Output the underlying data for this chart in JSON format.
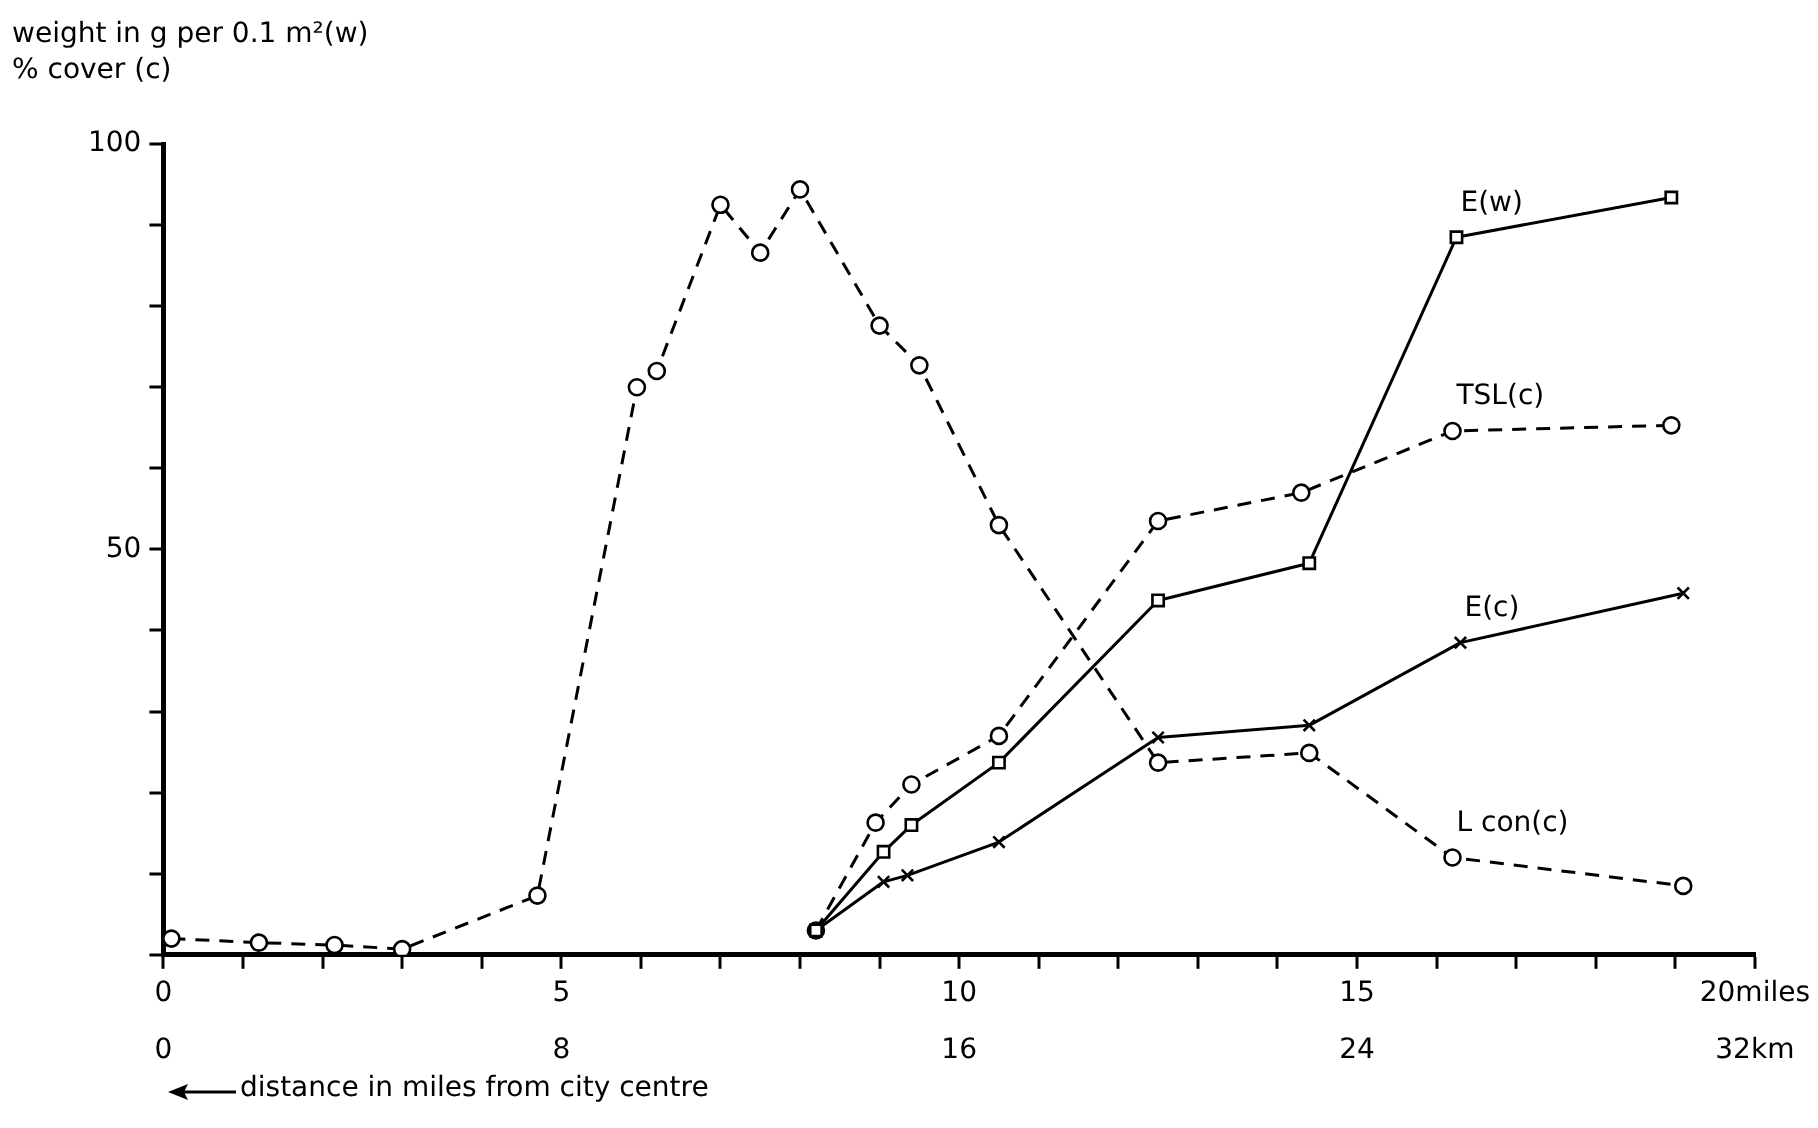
{
  "chart_data": {
    "type": "line",
    "ylabel": "weight in g per 0.1 m²(w)\n% cover (c)",
    "xlabel": "distance in miles from city centre",
    "xlim": [
      0,
      20
    ],
    "xticks": [
      0,
      {
        "value": 1,
        "label": null
      },
      {
        "value": 2,
        "label": null
      },
      {
        "value": 3,
        "label": null
      },
      {
        "value": 4,
        "label": null
      },
      5,
      {
        "value": 6,
        "label": null
      },
      {
        "value": 7,
        "label": null
      },
      {
        "value": 8,
        "label": null
      },
      {
        "value": 9,
        "label": null
      },
      10,
      {
        "value": 11,
        "label": null
      },
      {
        "value": 12,
        "label": null
      },
      {
        "value": 13,
        "label": null
      },
      {
        "value": 14,
        "label": null
      },
      15,
      {
        "value": 16,
        "label": null
      },
      {
        "value": 17,
        "label": null
      },
      {
        "value": 18,
        "label": null
      },
      {
        "value": 19,
        "label": null
      },
      {
        "value": 20,
        "label": "20miles"
      }
    ],
    "x2lim": [
      0,
      32
    ],
    "x2ticks": [
      0,
      8,
      16,
      24,
      {
        "value": 32,
        "label": "32km"
      }
    ],
    "ylim": [
      0,
      100
    ],
    "yticks": [
      {
        "value": 0,
        "label": null
      },
      {
        "value": 10,
        "label": null
      },
      {
        "value": 20,
        "label": null
      },
      {
        "value": 30,
        "label": null
      },
      {
        "value": 40,
        "label": null
      },
      50,
      {
        "value": 60,
        "label": null
      },
      {
        "value": 70,
        "label": null
      },
      {
        "value": 80,
        "label": null
      },
      {
        "value": 90,
        "label": null
      },
      100
    ],
    "grid": false,
    "legend": false,
    "series": [
      {
        "name": "E(w)",
        "color": "#000000",
        "marker": "square",
        "line_style": "solid",
        "x": [
          8.2,
          9.05,
          9.4,
          10.5,
          12.5,
          14.4,
          16.25,
          18.95
        ],
        "values": [
          3,
          12.7,
          16,
          23.7,
          43.7,
          48.3,
          88.5,
          93.4
        ]
      },
      {
        "name": "TSL(c)",
        "color": "#000000",
        "marker": "circle",
        "line_style": "dashed",
        "x": [
          8.2,
          8.95,
          9.4,
          10.5,
          12.5,
          14.3,
          16.2,
          18.95
        ],
        "values": [
          3,
          16.3,
          21,
          27,
          53.5,
          57,
          64.6,
          65.3
        ]
      },
      {
        "name": "E(c)",
        "color": "#000000",
        "marker": "cross",
        "line_style": "solid",
        "x": [
          8.2,
          9.05,
          9.35,
          10.5,
          12.5,
          14.4,
          16.3,
          19.1
        ],
        "values": [
          3,
          9,
          9.8,
          13.9,
          26.8,
          28.3,
          38.5,
          44.6
        ]
      },
      {
        "name": "L con(c)",
        "color": "#000000",
        "marker": "circle",
        "line_style": "dashed",
        "x": [
          0.1,
          1.2,
          2.15,
          3.0,
          4.7,
          5.95,
          6.2,
          7.0,
          7.5,
          8.0,
          9.0,
          9.5,
          10.5,
          12.5,
          14.4,
          16.2,
          19.1
        ],
        "values": [
          2,
          1.5,
          1.2,
          0.7,
          7.3,
          70,
          72,
          92.5,
          86.6,
          94.4,
          77.6,
          72.7,
          53,
          23.7,
          24.9,
          12,
          8.5
        ]
      }
    ]
  }
}
